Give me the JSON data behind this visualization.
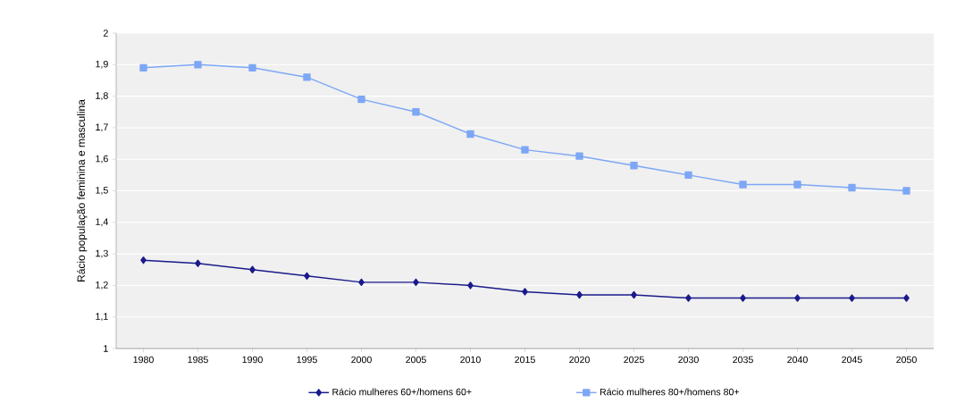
{
  "chart_data": {
    "type": "line",
    "ylabel": "Rácio população feminina e masculina",
    "categories": [
      "1980",
      "1985",
      "1990",
      "1995",
      "2000",
      "2005",
      "2010",
      "2015",
      "2020",
      "2025",
      "2030",
      "2035",
      "2040",
      "2045",
      "2050"
    ],
    "series": [
      {
        "name": "Rácio mulheres 60+/homens 60+",
        "color": "#1a1a8c",
        "marker": "diamond",
        "values": [
          1.28,
          1.27,
          1.25,
          1.23,
          1.21,
          1.21,
          1.2,
          1.18,
          1.17,
          1.17,
          1.16,
          1.16,
          1.16,
          1.16,
          1.16
        ]
      },
      {
        "name": "Rácio mulheres 80+/homens 80+",
        "color": "#7da7f5",
        "marker": "square",
        "values": [
          1.89,
          1.9,
          1.89,
          1.86,
          1.79,
          1.75,
          1.68,
          1.63,
          1.61,
          1.58,
          1.55,
          1.52,
          1.52,
          1.51,
          1.5
        ]
      }
    ],
    "ylim": [
      1,
      2
    ],
    "yticks": [
      1,
      {
        "value": 1.1,
        "label": "1,1"
      },
      {
        "value": 1.2,
        "label": "1,2"
      },
      {
        "value": 1.3,
        "label": "1,3"
      },
      {
        "value": 1.4,
        "label": "1,4"
      },
      {
        "value": 1.5,
        "label": "1,5"
      },
      {
        "value": 1.6,
        "label": "1,6"
      },
      {
        "value": 1.7,
        "label": "1,7"
      },
      {
        "value": 1.8,
        "label": "1,8"
      },
      {
        "value": 1.9,
        "label": "1,9"
      },
      2
    ],
    "grid": "y",
    "legend": "bottom",
    "line_style": "solid"
  }
}
